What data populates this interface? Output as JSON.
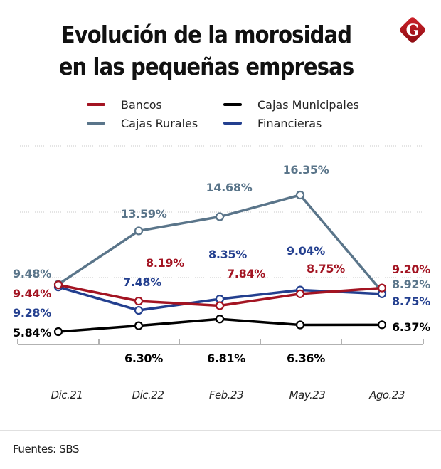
{
  "header": {
    "title_line1": "Evolución de la morosidad",
    "title_line2": "en las pequeñas empresas",
    "logo_letter": "G",
    "logo_color": "#b5121b"
  },
  "legend": [
    {
      "label": "Bancos",
      "color": "#a31422"
    },
    {
      "label": "Cajas Municipales",
      "color": "#000000"
    },
    {
      "label": "Cajas Rurales",
      "color": "#5a758a"
    },
    {
      "label": "Financieras",
      "color": "#233f8f"
    }
  ],
  "chart_data": {
    "type": "line",
    "title": "Evolución de la morosidad en las pequeñas empresas",
    "xlabel": "",
    "ylabel": "",
    "categories": [
      "Dic.21",
      "Dic.22",
      "Feb.23",
      "May.23",
      "Ago.23"
    ],
    "ylim": [
      5,
      19
    ],
    "grid": true,
    "legend_position": "top",
    "series": [
      {
        "name": "Bancos",
        "color": "#a31422",
        "values": [
          9.44,
          8.19,
          7.84,
          8.75,
          9.2
        ],
        "labels": [
          "9.44%",
          "8.19%",
          "7.84%",
          "8.75%",
          "9.20%"
        ]
      },
      {
        "name": "Cajas Municipales",
        "color": "#000000",
        "values": [
          5.84,
          6.3,
          6.81,
          6.36,
          6.37
        ],
        "labels": [
          "5.84%",
          "6.30%",
          "6.81%",
          "6.36%",
          "6.37%"
        ]
      },
      {
        "name": "Cajas Rurales",
        "color": "#5a758a",
        "values": [
          9.48,
          13.59,
          14.68,
          16.35,
          8.92
        ],
        "labels": [
          "9.48%",
          "13.59%",
          "14.68%",
          "16.35%",
          "8.92%"
        ]
      },
      {
        "name": "Financieras",
        "color": "#233f8f",
        "values": [
          9.28,
          7.48,
          8.35,
          9.04,
          8.75
        ],
        "labels": [
          "9.28%",
          "7.48%",
          "8.35%",
          "9.04%",
          "8.75%"
        ]
      }
    ]
  },
  "footer": {
    "source": "Fuentes: SBS"
  }
}
